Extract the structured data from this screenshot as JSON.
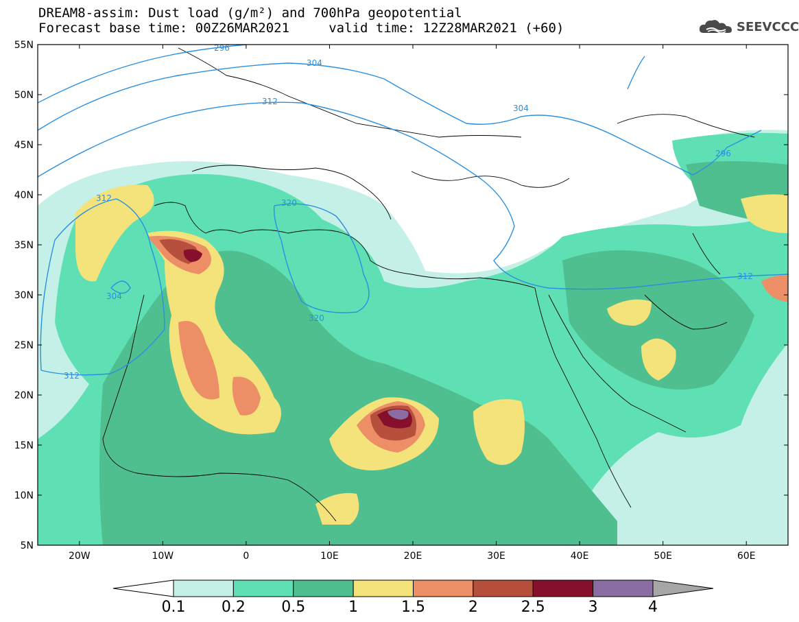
{
  "header": {
    "title_line1": "DREAM8-assim: Dust load (g/m²) and 700hPa geopotential",
    "title_line2": "Forecast base time: 00Z26MAR2021     valid time: 12Z28MAR2021 (+60)",
    "brand": "SEEVCCC",
    "brand_icon": "cloud-logo-icon"
  },
  "map": {
    "lon_range": [
      -25,
      65
    ],
    "lat_range": [
      5,
      55
    ],
    "lat_ticks": [
      "55N",
      "50N",
      "45N",
      "40N",
      "35N",
      "30N",
      "25N",
      "20N",
      "15N",
      "10N",
      "5N"
    ],
    "lon_ticks": [
      "20W",
      "10W",
      "0",
      "10E",
      "20E",
      "30E",
      "40E",
      "50E",
      "60E"
    ],
    "contour_color": "#2a8fe0",
    "contour_labels": [
      "296",
      "304",
      "312",
      "304",
      "312",
      "320",
      "320",
      "312",
      "304",
      "296",
      "312"
    ]
  },
  "colorbar": {
    "labels": [
      "0.1",
      "0.2",
      "0.5",
      "1",
      "1.5",
      "2",
      "2.5",
      "3",
      "4"
    ],
    "colors": [
      "#c4f0e8",
      "#5fe0b4",
      "#4fbf8f",
      "#f4e27a",
      "#ec8f66",
      "#b64f3c",
      "#86102c",
      "#8a6da3",
      "#a6a6a6"
    ]
  },
  "legend_colors": {
    "low_end": "#ffffff",
    "high_end": "#a6a6a6"
  }
}
